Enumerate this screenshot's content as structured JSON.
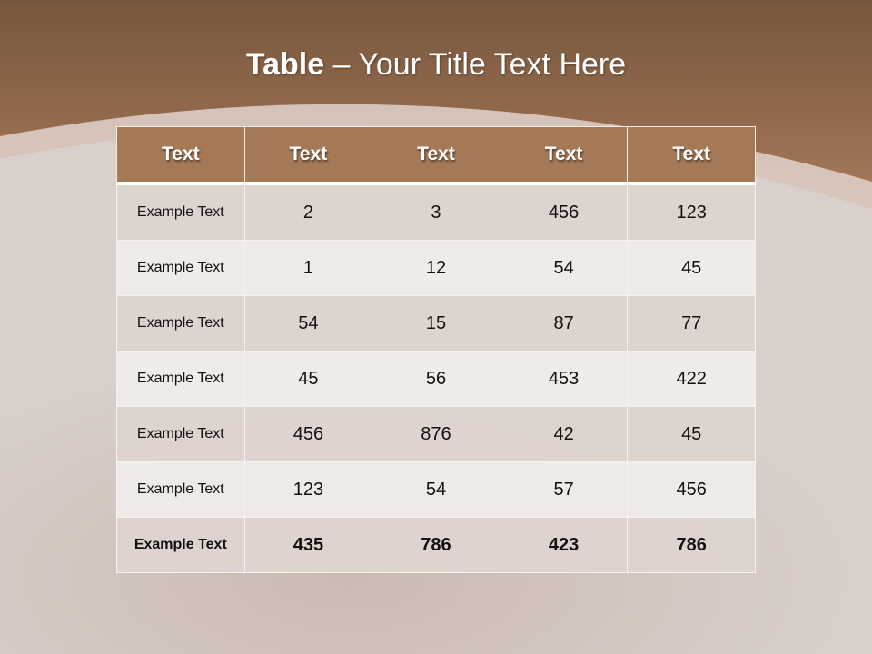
{
  "title": {
    "bold": "Table",
    "rest": " – Your Title Text Here"
  },
  "table": {
    "headers": [
      "Text",
      "Text",
      "Text",
      "Text",
      "Text"
    ],
    "rows": [
      [
        "Example Text",
        "2",
        "3",
        "456",
        "123"
      ],
      [
        "Example Text",
        "1",
        "12",
        "54",
        "45"
      ],
      [
        "Example Text",
        "54",
        "15",
        "87",
        "77"
      ],
      [
        "Example Text",
        "45",
        "56",
        "453",
        "422"
      ],
      [
        "Example Text",
        "456",
        "876",
        "42",
        "45"
      ],
      [
        "Example Text",
        "123",
        "54",
        "57",
        "456"
      ],
      [
        "Example Text",
        "435",
        "786",
        "423",
        "786"
      ]
    ]
  },
  "colors": {
    "header": "#a57856",
    "background_top": "#76573d"
  }
}
